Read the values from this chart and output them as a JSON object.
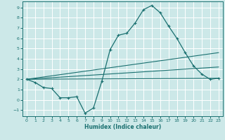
{
  "xlabel": "Humidex (Indice chaleur)",
  "background_color": "#cce8e8",
  "grid_color": "#ffffff",
  "line_color": "#1a7070",
  "xlim": [
    -0.5,
    23.5
  ],
  "ylim": [
    -1.6,
    9.6
  ],
  "xticks": [
    0,
    1,
    2,
    3,
    4,
    5,
    6,
    7,
    8,
    9,
    10,
    11,
    12,
    13,
    14,
    15,
    16,
    17,
    18,
    19,
    20,
    21,
    22,
    23
  ],
  "yticks": [
    -1,
    0,
    1,
    2,
    3,
    4,
    5,
    6,
    7,
    8,
    9
  ],
  "curve1_x": [
    0,
    1,
    2,
    3,
    4,
    5,
    6,
    7,
    8,
    9,
    10,
    11,
    12,
    13,
    14,
    15,
    16,
    17,
    18,
    19,
    20,
    21,
    22,
    23
  ],
  "curve1_y": [
    2.0,
    1.7,
    1.2,
    1.1,
    0.2,
    0.2,
    0.3,
    -1.3,
    -0.8,
    1.8,
    4.9,
    6.3,
    6.5,
    7.5,
    8.8,
    9.2,
    8.5,
    7.2,
    6.0,
    4.6,
    3.3,
    2.5,
    2.0,
    2.1
  ],
  "curve2_x": [
    0,
    23
  ],
  "curve2_y": [
    2.0,
    2.1
  ],
  "curve3_x": [
    0,
    23
  ],
  "curve3_y": [
    2.0,
    4.6
  ],
  "curve4_x": [
    0,
    23
  ],
  "curve4_y": [
    2.0,
    3.2
  ]
}
